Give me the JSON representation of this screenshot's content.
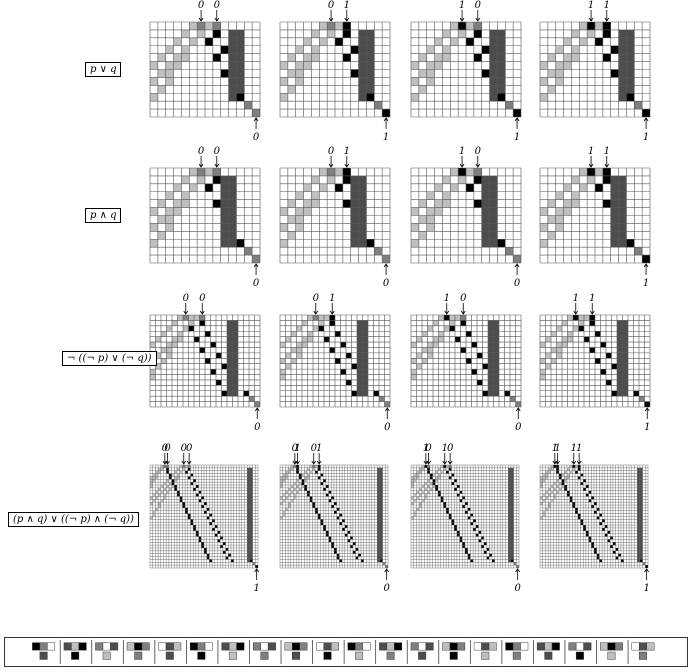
{
  "rows": [
    {
      "expression": "p ∨ q",
      "panels": [
        {
          "inputs": [
            "0",
            "0"
          ],
          "output": "0"
        },
        {
          "inputs": [
            "0",
            "1"
          ],
          "output": "1"
        },
        {
          "inputs": [
            "1",
            "0"
          ],
          "output": "1"
        },
        {
          "inputs": [
            "1",
            "1"
          ],
          "output": "1"
        }
      ]
    },
    {
      "expression": "p ∧ q",
      "panels": [
        {
          "inputs": [
            "0",
            "0"
          ],
          "output": "0"
        },
        {
          "inputs": [
            "0",
            "1"
          ],
          "output": "0"
        },
        {
          "inputs": [
            "1",
            "0"
          ],
          "output": "0"
        },
        {
          "inputs": [
            "1",
            "1"
          ],
          "output": "1"
        }
      ]
    },
    {
      "expression": "¬ ((¬ p) ∨ (¬ q))",
      "panels": [
        {
          "inputs": [
            "0",
            "0"
          ],
          "output": "0"
        },
        {
          "inputs": [
            "0",
            "1"
          ],
          "output": "0"
        },
        {
          "inputs": [
            "1",
            "0"
          ],
          "output": "0"
        },
        {
          "inputs": [
            "1",
            "1"
          ],
          "output": "1"
        }
      ]
    },
    {
      "expression": "(p ∧ q) ∨ ((¬ p) ∧ (¬ q))",
      "panels": [
        {
          "inputs": [
            "0",
            "0",
            "0",
            "0"
          ],
          "output": "1"
        },
        {
          "inputs": [
            "0",
            "1",
            "0",
            "1"
          ],
          "output": "0"
        },
        {
          "inputs": [
            "1",
            "0",
            "1",
            "0"
          ],
          "output": "0"
        },
        {
          "inputs": [
            "1",
            "1",
            "1",
            "1"
          ],
          "output": "1"
        }
      ]
    }
  ],
  "colors": {
    "black": "#000000",
    "dark_gray": "#4d4d4d",
    "mid_gray": "#7f7f7f",
    "light_gray": "#bfbfbf",
    "white": "#ffffff",
    "grid_line": "#555555"
  }
}
